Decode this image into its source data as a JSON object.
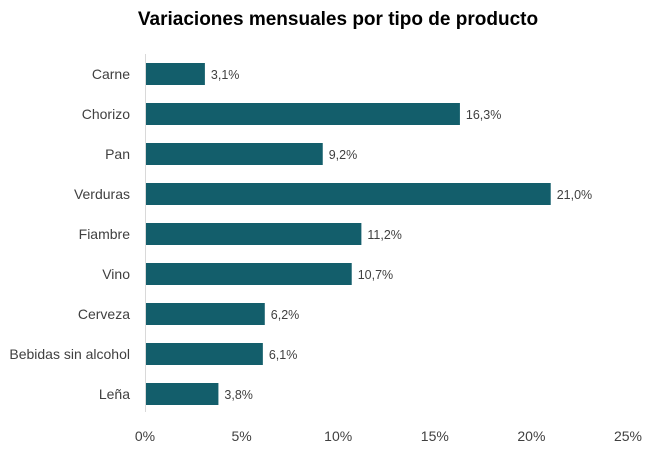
{
  "chart_data": {
    "type": "bar",
    "orientation": "horizontal",
    "title": "Variaciones mensuales por tipo de producto",
    "categories": [
      "Carne",
      "Chorizo",
      "Pan",
      "Verduras",
      "Fiambre",
      "Vino",
      "Cerveza",
      "Bebidas sin alcohol",
      "Leña"
    ],
    "values": [
      3.1,
      16.3,
      9.2,
      21.0,
      11.2,
      10.7,
      6.2,
      6.1,
      3.8
    ],
    "data_labels": [
      "3,1%",
      "16,3%",
      "9,2%",
      "21,0%",
      "11,2%",
      "10,7%",
      "6,2%",
      "6,1%",
      "3,8%"
    ],
    "x_ticks": [
      0,
      5,
      10,
      15,
      20,
      25
    ],
    "x_tick_labels": [
      "0%",
      "5%",
      "10%",
      "15%",
      "20%",
      "25%"
    ],
    "xlim": [
      0,
      25
    ],
    "grid": false,
    "legend": "none",
    "bar_color": "#135e6b"
  }
}
